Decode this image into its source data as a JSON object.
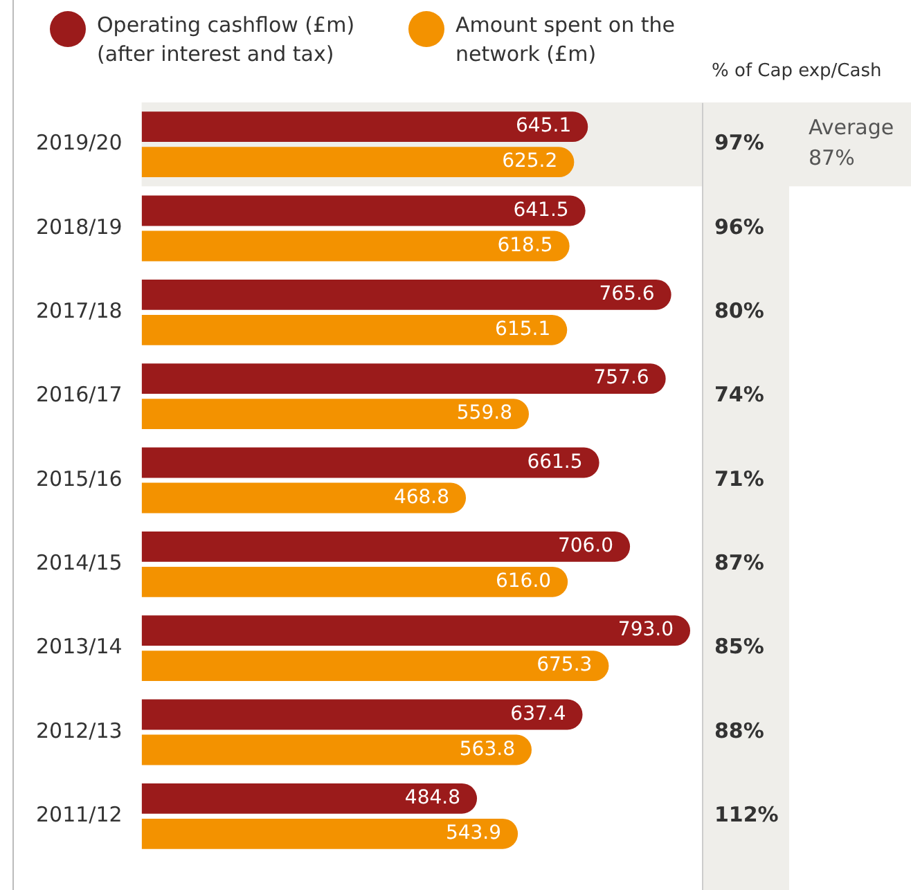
{
  "chart_data": {
    "type": "bar",
    "orientation": "horizontal",
    "categories": [
      "2019/20",
      "2018/19",
      "2017/18",
      "2016/17",
      "2015/16",
      "2014/15",
      "2013/14",
      "2012/13",
      "2011/12"
    ],
    "series": [
      {
        "name": "Operating cashflow (£m) (after interest and tax)",
        "color": "#9b1b1b",
        "values": [
          645.1,
          641.5,
          765.6,
          757.6,
          661.5,
          706.0,
          793.0,
          637.4,
          484.8
        ],
        "value_labels": [
          "645.1",
          "641.5",
          "765.6",
          "757.6",
          "661.5",
          "706.0",
          "793.0",
          "637.4",
          "484.8"
        ]
      },
      {
        "name": "Amount spent on the network (£m)",
        "color": "#f39200",
        "values": [
          625.2,
          618.5,
          615.1,
          559.8,
          468.8,
          616.0,
          675.3,
          563.8,
          543.9
        ],
        "value_labels": [
          "625.2",
          "618.5",
          "615.1",
          "559.8",
          "468.8",
          "616.0",
          "675.3",
          "563.8",
          "543.9"
        ]
      }
    ],
    "xlim": [
      0,
      810
    ],
    "tick_labels": "y",
    "legend": "top left",
    "grid": false,
    "bands": [
      {
        "axis": "y",
        "from": "2019/20",
        "to": "2019/20",
        "color": "#efeeea"
      }
    ],
    "annotations": [
      "% of Cap exp/Cash",
      "Average 87%",
      "97%",
      "96%",
      "80%",
      "74%",
      "71%",
      "87%",
      "85%",
      "88%",
      "112%"
    ]
  }
}
